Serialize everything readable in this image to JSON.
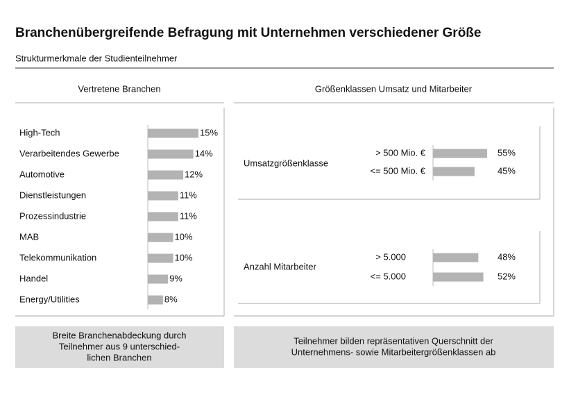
{
  "header": {
    "title": "Branchenübergreifende Befragung mit Unternehmen verschiedener Größe",
    "subtitle": "Strukturmerkmale der Studienteilnehmer",
    "right_panel_title": "Größenklassen Umsatz und Mitarbeiter"
  },
  "chart_data": [
    {
      "type": "bar",
      "orientation": "horizontal",
      "title": "Vertretene Branchen",
      "categories": [
        "High-Tech",
        "Verarbeitendes Gewerbe",
        "Automotive",
        "Dienstleistungen",
        "Prozessindustrie",
        "MAB",
        "Telekommunikation",
        "Handel",
        "Energy/Utilities"
      ],
      "values": [
        15,
        14,
        12,
        11,
        11,
        10,
        10,
        9,
        8
      ],
      "value_labels": [
        "15%",
        "14%",
        "12%",
        "11%",
        "11%",
        "10%",
        "10%",
        "9%",
        "8%"
      ],
      "color": "#b3b3b3",
      "xlim": [
        5,
        15
      ]
    },
    {
      "type": "bar",
      "orientation": "horizontal",
      "title": "Umsatzgrößenklasse",
      "categories": [
        "> 500 Mio. €",
        "<= 500 Mio. €"
      ],
      "values": [
        55,
        45
      ],
      "value_labels": [
        "55%",
        "45%"
      ],
      "color": "#b3b3b3",
      "xlim": [
        12,
        55
      ]
    },
    {
      "type": "bar",
      "orientation": "horizontal",
      "title": "Anzahl Mitarbeiter",
      "categories": [
        "> 5.000",
        "<= 5.000"
      ],
      "values": [
        48,
        52
      ],
      "value_labels": [
        "48%",
        "52%"
      ],
      "color": "#b3b3b3",
      "xlim": [
        12,
        55
      ]
    }
  ],
  "footer": {
    "left": [
      "Breite Branchenabdeckung durch",
      "Teilnehmer aus 9 unterschied-",
      "lichen Branchen"
    ],
    "right": [
      "Teilnehmer bilden repräsentativen Querschnitt der",
      "Unternehmens- sowie Mitarbeitergrößenklassen ab"
    ]
  }
}
